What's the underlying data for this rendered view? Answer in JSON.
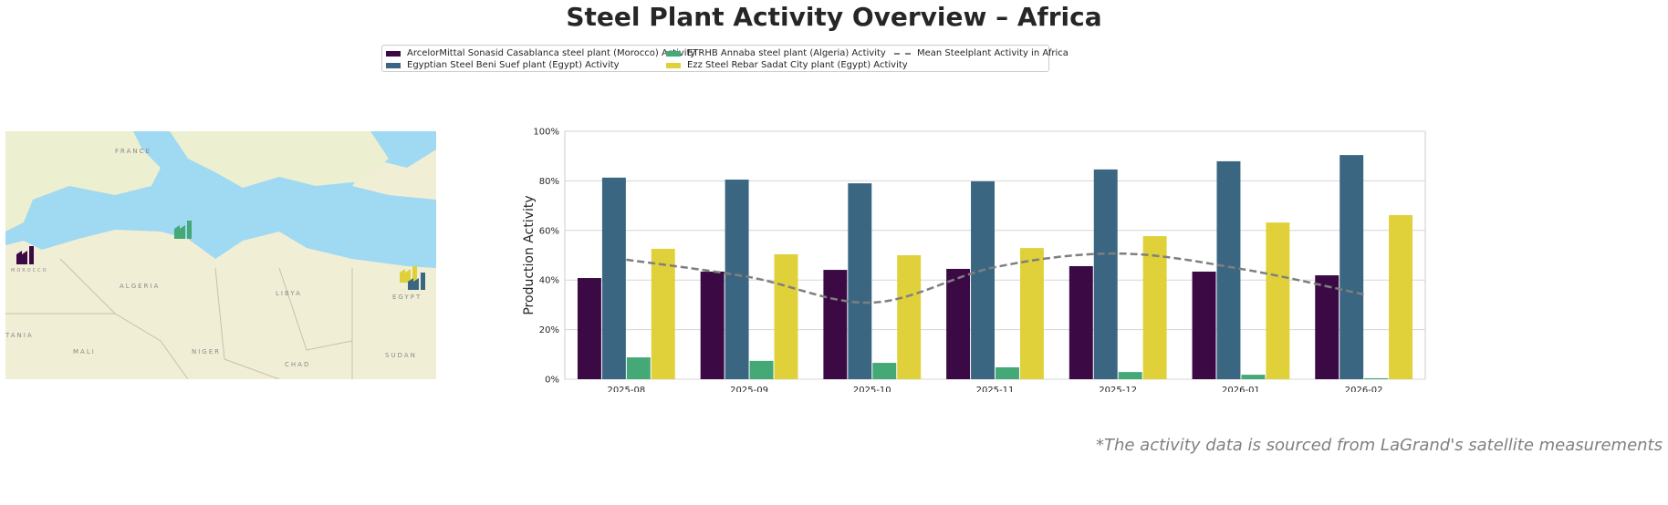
{
  "title": "Steel Plant Activity Overview – Africa",
  "legend": [
    {
      "label": "ArcelorMittal Sonasid Casablanca steel plant (Morocco) Activity",
      "color": "#3b0a45"
    },
    {
      "label": "Egyptian Steel Beni Suef plant (Egypt) Activity",
      "color": "#3b6682"
    },
    {
      "label": "ETRHB Annaba steel plant (Algeria) Activity",
      "color": "#44a877"
    },
    {
      "label": "Ezz Steel Rebar Sadat City plant (Egypt) Activity",
      "color": "#e0d13a"
    },
    {
      "label": "Mean Steelplant Activity in Africa",
      "color": "#7f7f7f"
    }
  ],
  "map": {
    "labels": [
      "FRANCE",
      "ALGERIA",
      "LIBYA",
      "EGYPT",
      "MALI",
      "NIGER",
      "CHAD",
      "SUDAN",
      "MOROCCO",
      "TANIA"
    ]
  },
  "chart_data": {
    "type": "bar",
    "title": "",
    "xlabel": "",
    "ylabel": "Production Activity",
    "ylim": [
      0,
      100
    ],
    "yticks": [
      "0%",
      "20%",
      "40%",
      "60%",
      "80%",
      "100%"
    ],
    "grid": true,
    "categories": [
      "2025-08",
      "2025-09",
      "2025-10",
      "2025-11",
      "2025-12",
      "2026-01",
      "2026-02"
    ],
    "series": [
      {
        "name": "ArcelorMittal Sonasid Casablanca steel plant (Morocco) Activity",
        "values": [
          40.8,
          43.4,
          44.1,
          44.5,
          45.6,
          43.4,
          41.9
        ]
      },
      {
        "name": "Egyptian Steel Beni Suef plant (Egypt) Activity",
        "values": [
          81.3,
          80.5,
          79.0,
          79.8,
          84.6,
          87.9,
          90.4
        ]
      },
      {
        "name": "ETRHB Annaba steel plant (Algeria) Activity",
        "values": [
          8.8,
          7.4,
          6.6,
          4.8,
          2.9,
          1.8,
          0.4
        ]
      },
      {
        "name": "Ezz Steel Rebar Sadat City plant (Egypt) Activity",
        "values": [
          52.6,
          50.4,
          50.0,
          52.9,
          57.7,
          63.2,
          66.2
        ]
      }
    ],
    "mean": {
      "name": "Mean Steelplant Activity in Africa",
      "values": [
        48.2,
        41.2,
        30.9,
        45.2,
        50.7,
        44.5,
        34.2
      ]
    }
  },
  "footnote": "*The activity data is sourced from LaGrand's satellite measurements"
}
